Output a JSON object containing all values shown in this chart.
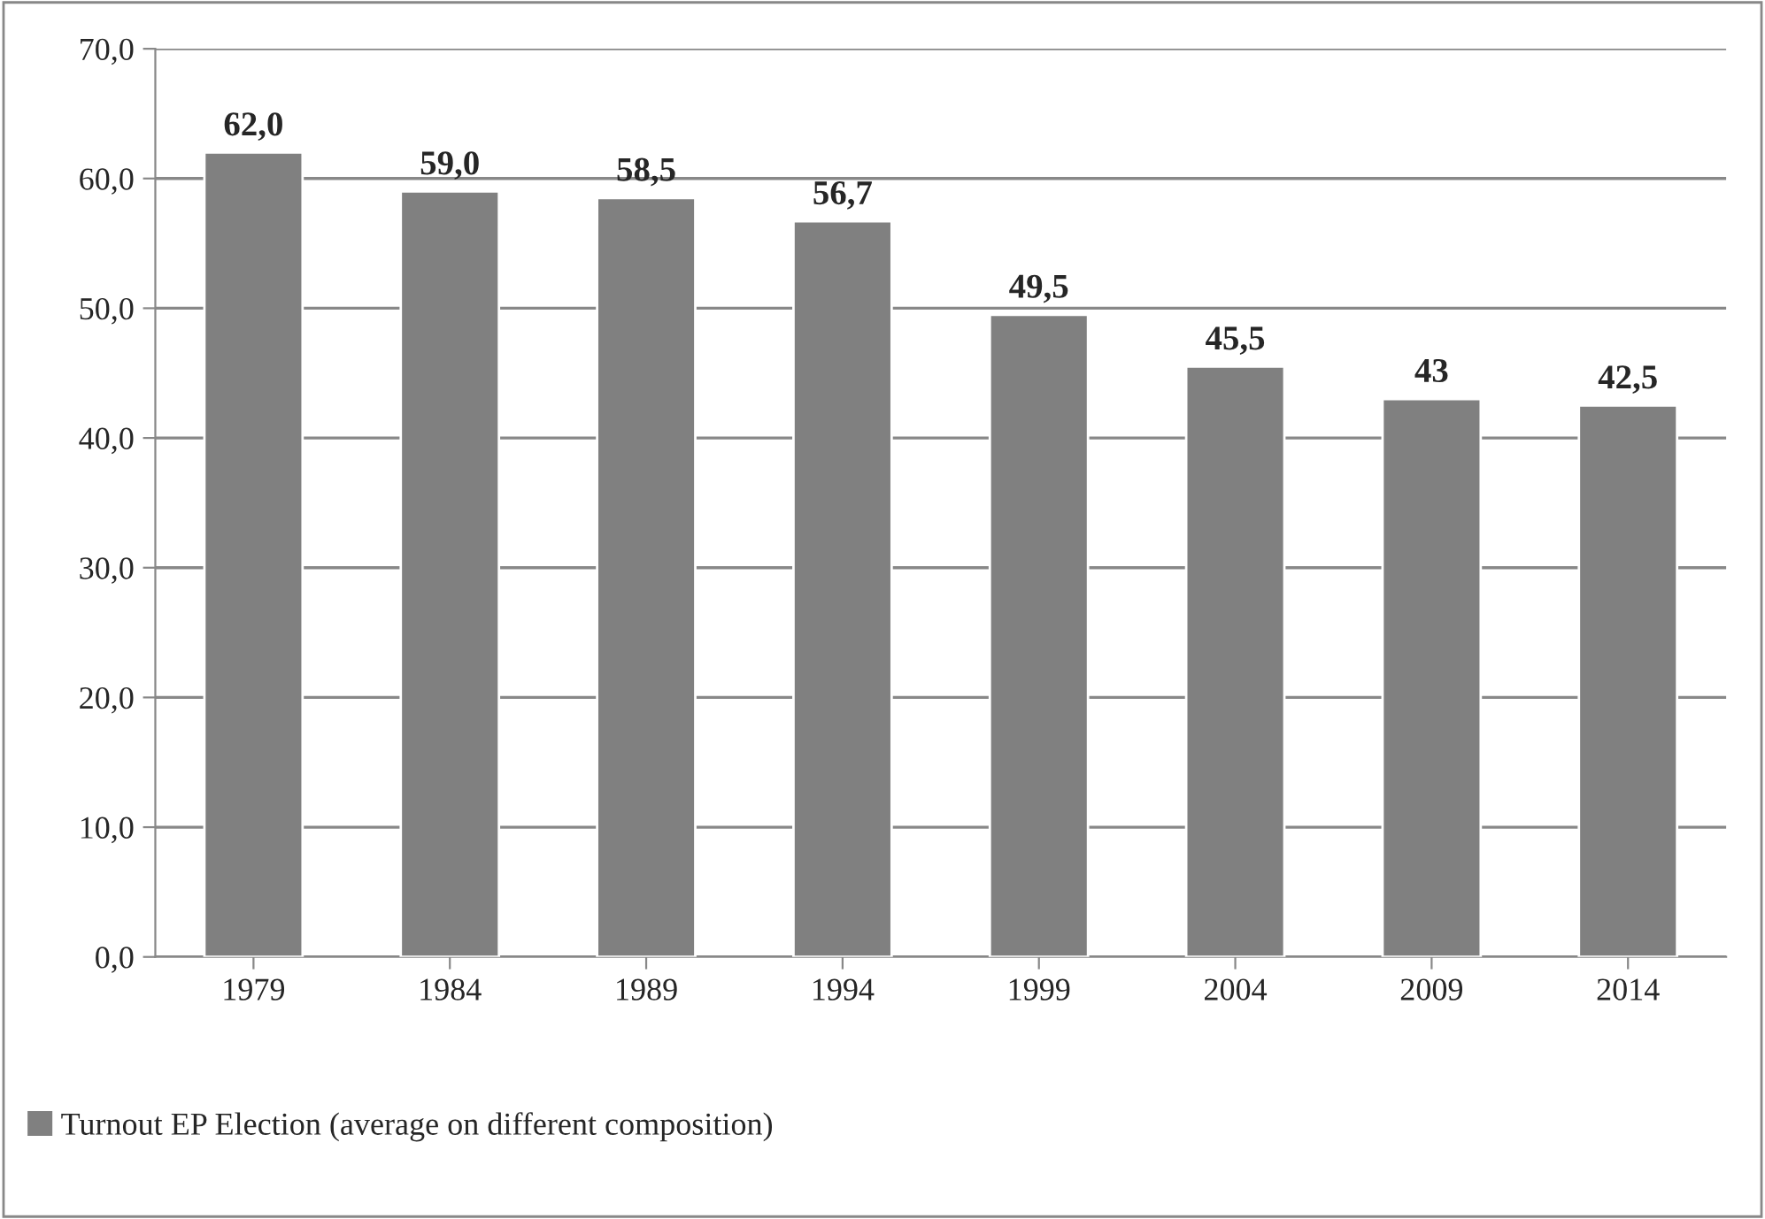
{
  "chart_data": {
    "type": "bar",
    "categories": [
      "1979",
      "1984",
      "1989",
      "1994",
      "1999",
      "2004",
      "2009",
      "2014"
    ],
    "series": [
      {
        "name": "Turnout EP Election (average on different composition)",
        "color": "#808080",
        "values": [
          62.0,
          59.0,
          58.5,
          56.7,
          49.5,
          45.5,
          43,
          42.5
        ],
        "value_labels": [
          "62,0",
          "59,0",
          "58,5",
          "56,7",
          "49,5",
          "45,5",
          "43",
          "42,5"
        ]
      }
    ],
    "ylim": [
      0,
      70
    ],
    "yticks": [
      {
        "value": 0,
        "label": "0,0"
      },
      {
        "value": 10,
        "label": "10,0"
      },
      {
        "value": 20,
        "label": "20,0"
      },
      {
        "value": 30,
        "label": "30,0"
      },
      {
        "value": 40,
        "label": "40,0"
      },
      {
        "value": 50,
        "label": "50,0"
      },
      {
        "value": 60,
        "label": "60,0"
      },
      {
        "value": 70,
        "label": "70,0"
      }
    ],
    "grid": "y",
    "legend": "bottom left"
  }
}
